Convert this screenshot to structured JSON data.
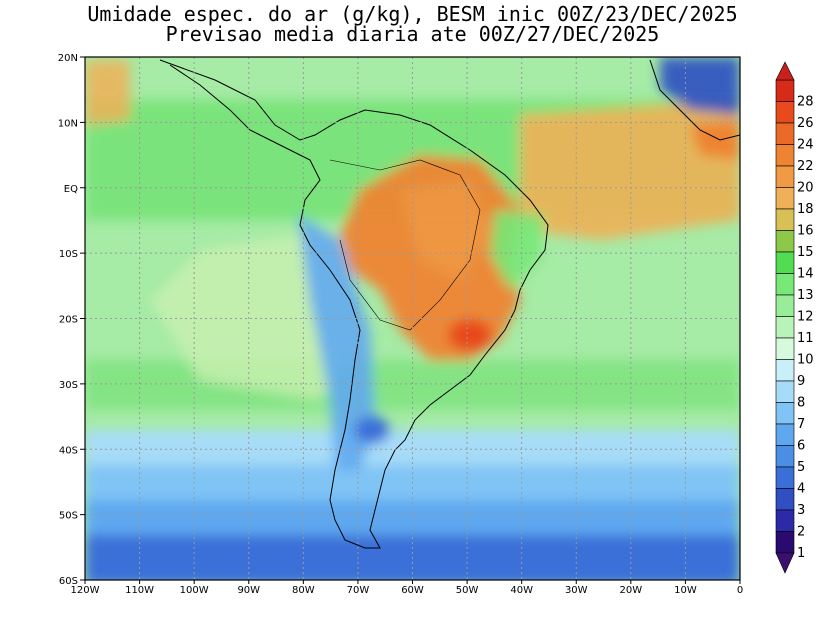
{
  "title_line1": "Umidade espec. do ar (g/kg), BESM inic 00Z/23/DEC/2025",
  "title_line2": "Previsao media diaria ate 00Z/27/DEC/2025",
  "lat_labels": [
    "20N",
    "10N",
    "EQ",
    "10S",
    "20S",
    "30S",
    "40S",
    "50S",
    "60S"
  ],
  "lon_labels": [
    "120W",
    "110W",
    "100W",
    "90W",
    "80W",
    "70W",
    "60W",
    "50W",
    "40W",
    "30W",
    "20W",
    "10W",
    "0"
  ],
  "colorbar": {
    "labels": [
      "1",
      "2",
      "3",
      "4",
      "5",
      "6",
      "7",
      "8",
      "9",
      "10",
      "11",
      "12",
      "13",
      "14",
      "15",
      "16",
      "18",
      "20",
      "22",
      "24",
      "26",
      "28"
    ],
    "colors": [
      "#2a0a6e",
      "#2d2aa8",
      "#2f4fc2",
      "#3b6fd8",
      "#4a8ee6",
      "#5fa8ef",
      "#80c4f5",
      "#a7dcf8",
      "#c9f0f9",
      "#d8fadc",
      "#b8f4b8",
      "#98ee98",
      "#78e878",
      "#52dc52",
      "#8ec848",
      "#d8c055",
      "#f0b058",
      "#f09a44",
      "#ee8432",
      "#ec6a28",
      "#e84a1e",
      "#d82a18"
    ]
  },
  "map": {
    "lon_range": [
      -120,
      0
    ],
    "lat_range": [
      -60,
      20
    ],
    "ocean_background": "#a6eba6"
  }
}
